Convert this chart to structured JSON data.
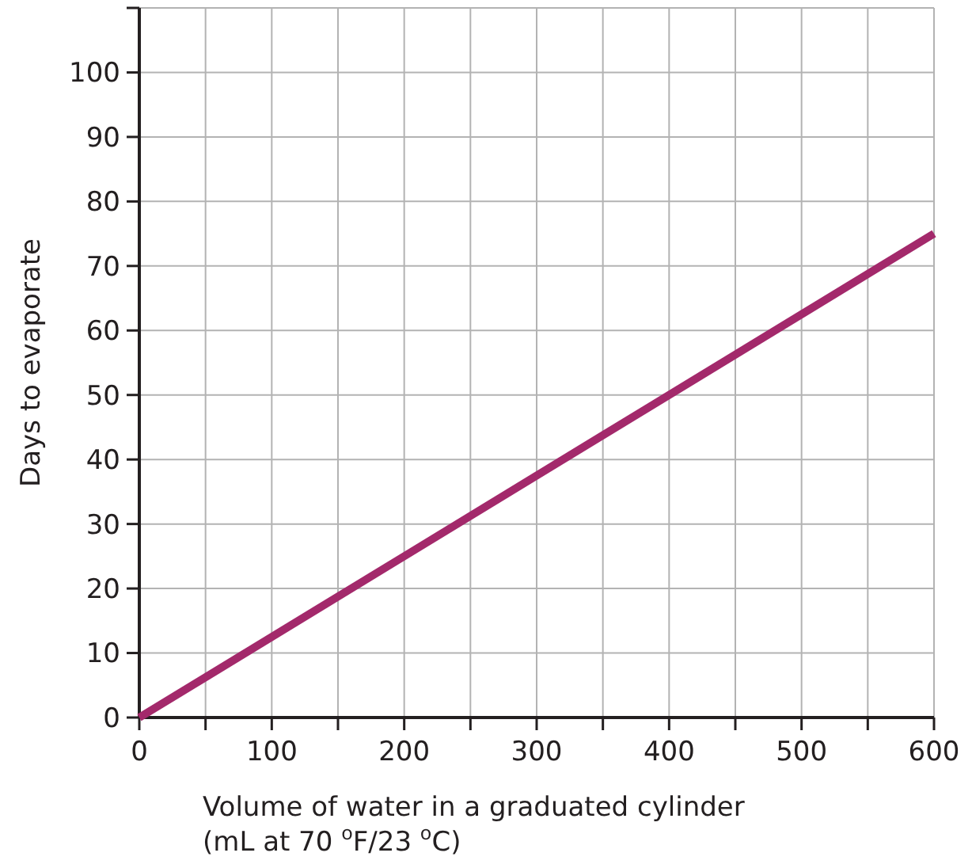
{
  "chart_data": {
    "type": "line",
    "xlabel": "Volume of water in a graduated cylinder\n(mL at 70 $^{o}$F/23 $^{o}$C)",
    "ylabel": "Days to evaporate",
    "x": [
      0,
      600
    ],
    "series": [
      {
        "color": "#a3296b",
        "values": [
          0,
          75
        ]
      }
    ],
    "xlim": [
      0,
      600
    ],
    "ylim": [
      0,
      110
    ],
    "xticks": [
      0,
      {
        "value": 50,
        "label": null
      },
      100,
      {
        "value": 150,
        "label": null
      },
      200,
      {
        "value": 250,
        "label": null
      },
      300,
      {
        "value": 350,
        "label": null
      },
      400,
      {
        "value": 450,
        "label": null
      },
      500,
      {
        "value": 550,
        "label": null
      },
      600
    ],
    "yticks": [
      0,
      10,
      20,
      30,
      40,
      50,
      60,
      70,
      80,
      90,
      100,
      {
        "value": 110,
        "label": null
      }
    ],
    "grid": true,
    "marker": "none",
    "line_style": "solid"
  }
}
